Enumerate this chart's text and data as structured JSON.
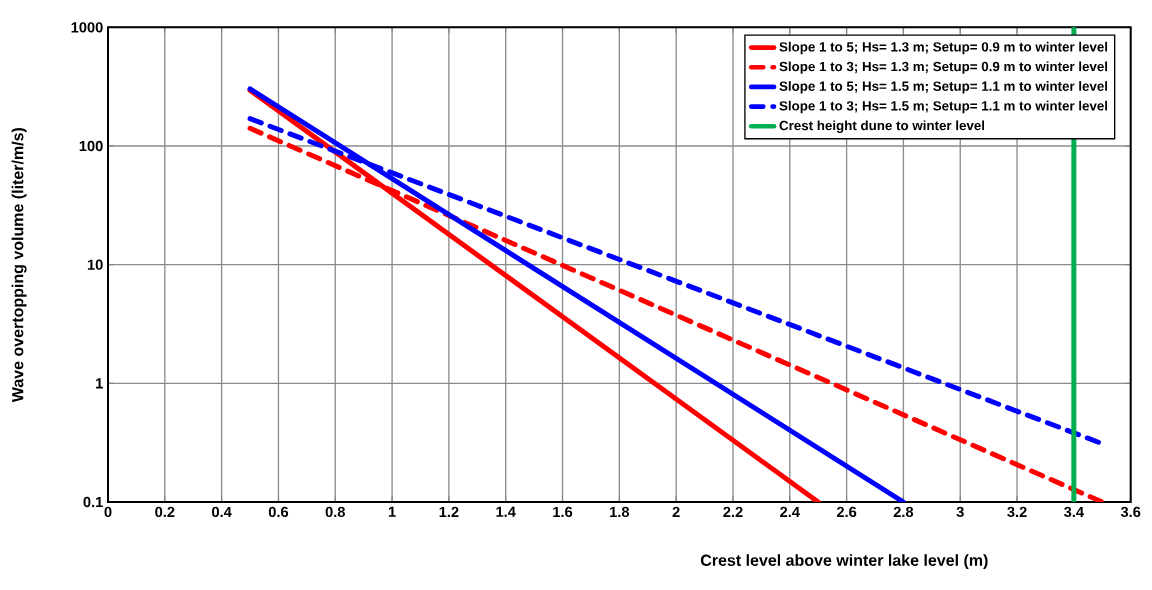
{
  "chart_data": {
    "type": "line",
    "xlabel": "Crest level above winter lake level (m)",
    "ylabel": "Wave overtopping volume (liter/m/s)",
    "xlim": [
      0,
      3.6
    ],
    "ylim": [
      0.1,
      1000
    ],
    "log": "y",
    "grid": true,
    "legend": "top right",
    "xticks": [
      0,
      0.2,
      0.4,
      0.6,
      0.8,
      1,
      1.2,
      1.4,
      1.6,
      1.8,
      2,
      2.2,
      2.4,
      2.6,
      2.8,
      3,
      3.2,
      3.4,
      3.6
    ],
    "yticks": [
      0.1,
      1,
      10,
      100,
      1000
    ],
    "series": [
      {
        "name": "Slope 1 to 5; Hs= 1.3 m; Setup= 0.9 m to winter level",
        "color": "#ff0000",
        "line_style": "solid",
        "x": [
          0.5,
          2.5
        ],
        "values": [
          295,
          0.1
        ]
      },
      {
        "name": "Slope 1 to 3; Hs= 1.3 m; Setup= 0.9 m to winter level",
        "color": "#ff0000",
        "line_style": "dashed",
        "x": [
          0.5,
          3.5
        ],
        "values": [
          141,
          0.1
        ]
      },
      {
        "name": "Slope 1 to 5; Hs= 1.5 m; Setup= 1.1 m to winter level",
        "color": "#0000ff",
        "line_style": "solid",
        "x": [
          0.5,
          2.8
        ],
        "values": [
          303,
          0.1
        ]
      },
      {
        "name": "Slope 1 to 3; Hs= 1.5 m; Setup= 1.1 m to winter level",
        "color": "#0000ff",
        "line_style": "dashed",
        "x": [
          0.5,
          3.5
        ],
        "values": [
          170,
          0.31
        ]
      },
      {
        "name": "Crest height dune to winter level",
        "color": "#00b050",
        "line_style": "solid",
        "x": [
          3.4,
          3.4
        ],
        "values": [
          0.1,
          1000
        ]
      }
    ]
  }
}
